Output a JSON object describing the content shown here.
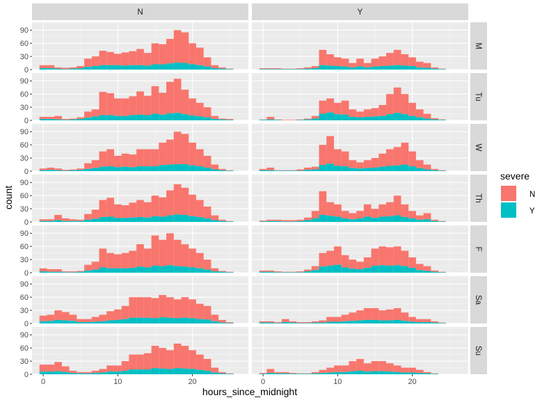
{
  "chart_data": {
    "type": "bar",
    "variant": "faceted stacked histogram",
    "xlabel": "hours_since_midnight",
    "ylabel": "count",
    "x_ticks": [
      0,
      10,
      20
    ],
    "y_ticks": [
      0,
      30,
      60,
      90
    ],
    "xlim": [
      -1.5,
      27.5
    ],
    "ylim": [
      0,
      108
    ],
    "bin_starts": [
      -0.5,
      0.5,
      1.5,
      2.5,
      3.5,
      4.5,
      5.5,
      6.5,
      7.5,
      8.5,
      9.5,
      10.5,
      11.5,
      12.5,
      13.5,
      14.5,
      15.5,
      16.5,
      17.5,
      18.5,
      19.5,
      20.5,
      21.5,
      22.5,
      23.5,
      24.5
    ],
    "bin_width": 1,
    "col_facets": [
      "N",
      "Y"
    ],
    "row_facets": [
      "M",
      "Tu",
      "W",
      "Th",
      "F",
      "Sa",
      "Su"
    ],
    "legend": {
      "title": "severe",
      "entries": [
        {
          "label": "N",
          "color": "#F8766D"
        },
        {
          "label": "Y",
          "color": "#00BFC4"
        }
      ]
    },
    "colors": {
      "N": "#F8766D",
      "Y": "#00BFC4",
      "panel_bg": "#EBEBEB",
      "strip_bg": "#D9D9D9"
    },
    "panels": {
      "N": {
        "M": {
          "total": [
            10,
            10,
            5,
            4,
            5,
            8,
            25,
            30,
            43,
            40,
            36,
            39,
            42,
            47,
            38,
            60,
            58,
            70,
            90,
            85,
            60,
            50,
            28,
            10,
            5,
            2
          ],
          "Y": [
            3,
            3,
            2,
            1,
            2,
            3,
            6,
            8,
            10,
            10,
            10,
            9,
            10,
            10,
            9,
            12,
            12,
            14,
            16,
            15,
            12,
            10,
            7,
            3,
            2,
            1
          ]
        },
        "Tu": {
          "total": [
            8,
            8,
            10,
            3,
            4,
            7,
            20,
            25,
            65,
            62,
            50,
            50,
            55,
            66,
            56,
            78,
            63,
            88,
            95,
            70,
            50,
            40,
            30,
            10,
            4,
            3
          ],
          "Y": [
            3,
            3,
            2,
            1,
            2,
            3,
            6,
            9,
            12,
            12,
            10,
            10,
            12,
            13,
            12,
            15,
            13,
            16,
            17,
            14,
            11,
            9,
            7,
            3,
            2,
            1
          ]
        },
        "W": {
          "total": [
            6,
            8,
            6,
            3,
            4,
            6,
            18,
            25,
            45,
            50,
            35,
            40,
            38,
            50,
            50,
            50,
            65,
            72,
            90,
            85,
            65,
            50,
            35,
            15,
            5,
            2
          ],
          "Y": [
            2,
            3,
            2,
            1,
            2,
            3,
            5,
            7,
            10,
            11,
            9,
            10,
            9,
            11,
            11,
            11,
            14,
            15,
            16,
            16,
            13,
            11,
            8,
            4,
            2,
            1
          ]
        },
        "Th": {
          "total": [
            6,
            6,
            16,
            8,
            6,
            5,
            18,
            28,
            50,
            55,
            40,
            38,
            44,
            50,
            45,
            60,
            56,
            72,
            86,
            78,
            62,
            50,
            35,
            15,
            5,
            2
          ],
          "Y": [
            2,
            2,
            4,
            2,
            2,
            2,
            5,
            7,
            11,
            12,
            9,
            9,
            10,
            11,
            10,
            13,
            12,
            15,
            17,
            16,
            13,
            11,
            8,
            4,
            2,
            1
          ]
        },
        "F": {
          "total": [
            10,
            8,
            8,
            3,
            3,
            4,
            18,
            25,
            55,
            45,
            42,
            45,
            50,
            65,
            55,
            85,
            75,
            90,
            75,
            65,
            55,
            45,
            30,
            10,
            4,
            2
          ],
          "Y": [
            3,
            2,
            2,
            1,
            1,
            2,
            5,
            7,
            12,
            10,
            10,
            10,
            11,
            14,
            12,
            16,
            15,
            17,
            15,
            14,
            12,
            10,
            7,
            3,
            2,
            1
          ]
        },
        "Sa": {
          "total": [
            18,
            20,
            30,
            26,
            20,
            10,
            10,
            15,
            20,
            28,
            32,
            40,
            60,
            60,
            60,
            58,
            65,
            60,
            55,
            60,
            55,
            45,
            40,
            20,
            8,
            3
          ],
          "Y": [
            5,
            6,
            8,
            7,
            6,
            3,
            3,
            4,
            5,
            7,
            8,
            10,
            13,
            13,
            13,
            12,
            14,
            13,
            12,
            13,
            12,
            10,
            9,
            5,
            2,
            1
          ]
        },
        "Su": {
          "total": [
            22,
            22,
            28,
            18,
            8,
            5,
            5,
            8,
            12,
            20,
            20,
            30,
            45,
            45,
            48,
            65,
            60,
            55,
            70,
            65,
            55,
            45,
            35,
            15,
            5,
            2
          ],
          "Y": [
            6,
            6,
            7,
            5,
            3,
            2,
            2,
            3,
            4,
            6,
            6,
            8,
            11,
            11,
            11,
            14,
            13,
            12,
            14,
            13,
            12,
            10,
            8,
            4,
            2,
            1
          ]
        }
      },
      "Y": {
        "M": {
          "total": [
            3,
            3,
            3,
            2,
            2,
            3,
            5,
            8,
            45,
            35,
            28,
            25,
            15,
            25,
            15,
            25,
            30,
            38,
            45,
            35,
            28,
            18,
            15,
            5,
            2,
            0
          ],
          "Y": [
            1,
            1,
            1,
            1,
            1,
            1,
            2,
            3,
            10,
            9,
            8,
            7,
            5,
            7,
            5,
            7,
            8,
            9,
            10,
            9,
            8,
            5,
            4,
            2,
            1,
            0
          ]
        },
        "Tu": {
          "total": [
            2,
            8,
            2,
            1,
            1,
            2,
            4,
            10,
            45,
            50,
            40,
            45,
            25,
            20,
            25,
            28,
            35,
            60,
            75,
            60,
            40,
            25,
            15,
            5,
            2,
            0
          ],
          "Y": [
            1,
            2,
            1,
            0,
            0,
            1,
            2,
            4,
            15,
            18,
            14,
            13,
            8,
            7,
            8,
            9,
            10,
            14,
            17,
            14,
            10,
            7,
            4,
            2,
            1,
            0
          ]
        },
        "W": {
          "total": [
            5,
            8,
            2,
            2,
            2,
            4,
            8,
            10,
            60,
            80,
            50,
            45,
            25,
            20,
            25,
            30,
            40,
            50,
            55,
            65,
            45,
            25,
            15,
            5,
            2,
            0
          ],
          "Y": [
            2,
            2,
            1,
            1,
            1,
            1,
            3,
            4,
            14,
            17,
            12,
            11,
            7,
            6,
            7,
            8,
            10,
            12,
            13,
            15,
            11,
            7,
            4,
            2,
            1,
            0
          ]
        },
        "Th": {
          "total": [
            3,
            5,
            5,
            4,
            4,
            5,
            10,
            25,
            70,
            45,
            40,
            25,
            20,
            25,
            40,
            30,
            40,
            45,
            60,
            40,
            25,
            15,
            20,
            5,
            2,
            0
          ],
          "Y": [
            1,
            2,
            2,
            1,
            1,
            2,
            4,
            8,
            16,
            14,
            12,
            8,
            6,
            8,
            12,
            9,
            12,
            13,
            15,
            11,
            8,
            5,
            6,
            2,
            1,
            0
          ]
        },
        "F": {
          "total": [
            5,
            5,
            3,
            2,
            2,
            3,
            7,
            15,
            45,
            50,
            60,
            40,
            30,
            25,
            35,
            55,
            60,
            58,
            60,
            50,
            35,
            20,
            15,
            5,
            2,
            0
          ],
          "Y": [
            2,
            2,
            1,
            1,
            1,
            1,
            3,
            6,
            14,
            16,
            18,
            12,
            9,
            8,
            11,
            16,
            17,
            16,
            17,
            15,
            11,
            6,
            4,
            2,
            1,
            0
          ]
        },
        "Sa": {
          "total": [
            5,
            5,
            3,
            10,
            5,
            3,
            3,
            5,
            7,
            15,
            15,
            20,
            25,
            30,
            35,
            35,
            30,
            32,
            35,
            25,
            15,
            10,
            10,
            5,
            2,
            0
          ],
          "Y": [
            2,
            2,
            1,
            3,
            2,
            1,
            1,
            2,
            2,
            4,
            4,
            5,
            6,
            7,
            8,
            8,
            7,
            7,
            8,
            6,
            4,
            3,
            3,
            2,
            1,
            0
          ]
        },
        "Su": {
          "total": [
            3,
            12,
            5,
            5,
            3,
            2,
            2,
            5,
            10,
            15,
            20,
            20,
            30,
            35,
            25,
            30,
            30,
            25,
            20,
            15,
            15,
            10,
            5,
            2,
            0,
            0
          ],
          "Y": [
            1,
            3,
            2,
            2,
            1,
            1,
            1,
            2,
            3,
            4,
            5,
            5,
            7,
            8,
            6,
            7,
            7,
            6,
            5,
            4,
            4,
            3,
            2,
            1,
            0,
            0
          ]
        }
      }
    }
  }
}
